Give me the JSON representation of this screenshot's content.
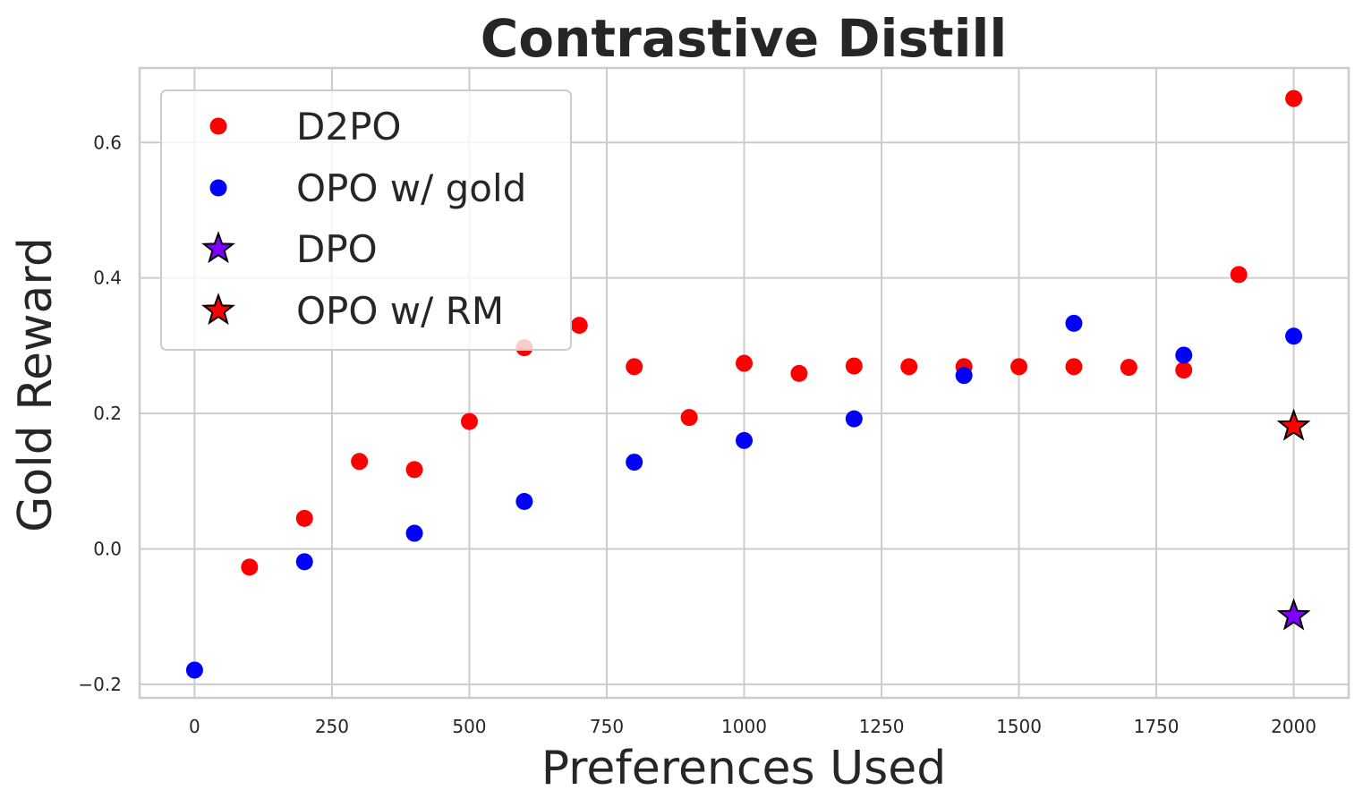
{
  "chart_data": {
    "type": "scatter",
    "title": "Contrastive Distill",
    "xlabel": "Preferences Used",
    "ylabel": "Gold Reward",
    "xlim": [
      -100,
      2100
    ],
    "ylim": [
      -0.22,
      0.71
    ],
    "xticks": [
      0,
      250,
      500,
      750,
      1000,
      1250,
      1500,
      1750,
      2000
    ],
    "xtick_labels": [
      "0",
      "250",
      "500",
      "750",
      "1000",
      "1250",
      "1500",
      "1750",
      "2000"
    ],
    "yticks": [
      -0.2,
      0.0,
      0.2,
      0.4,
      0.6
    ],
    "ytick_labels": [
      "−0.2",
      "0.0",
      "0.2",
      "0.4",
      "0.6"
    ],
    "grid": true,
    "legend_position": "top-left",
    "series": [
      {
        "name": "D2PO",
        "marker": "circle",
        "color": "#ff0000",
        "x": [
          100,
          200,
          300,
          400,
          500,
          600,
          700,
          800,
          900,
          1000,
          1100,
          1200,
          1300,
          1400,
          1500,
          1600,
          1700,
          1800,
          1900,
          2000
        ],
        "y": [
          -0.027,
          0.045,
          0.129,
          0.117,
          0.188,
          0.297,
          0.33,
          0.269,
          0.194,
          0.274,
          0.259,
          0.27,
          0.269,
          0.269,
          0.269,
          0.269,
          0.268,
          0.264,
          0.405,
          0.665
        ]
      },
      {
        "name": "OPO w/ gold",
        "marker": "circle",
        "color": "#0000ff",
        "x": [
          0,
          200,
          400,
          600,
          800,
          1000,
          1200,
          1400,
          1600,
          1800,
          2000
        ],
        "y": [
          -0.179,
          -0.019,
          0.023,
          0.07,
          0.128,
          0.16,
          0.192,
          0.256,
          0.333,
          0.286,
          0.314
        ]
      },
      {
        "name": "DPO",
        "marker": "star",
        "color": "#8000ff",
        "x": [
          2000
        ],
        "y": [
          -0.099
        ]
      },
      {
        "name": "OPO w/ RM",
        "marker": "star",
        "color": "#ff0000",
        "x": [
          2000
        ],
        "y": [
          0.181
        ]
      }
    ]
  }
}
